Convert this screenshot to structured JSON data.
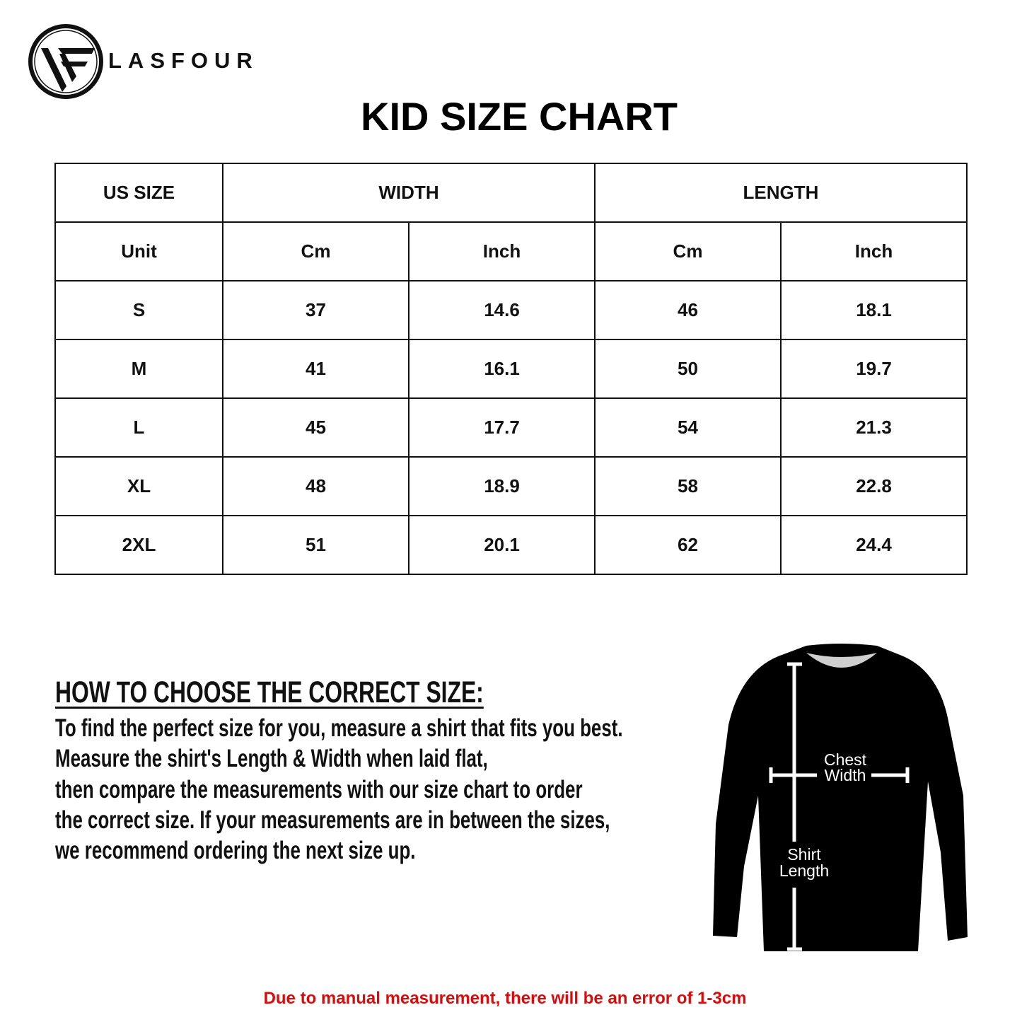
{
  "brand": {
    "name": "LASFOUR"
  },
  "title": "KID SIZE CHART",
  "table": {
    "header_row1": [
      "US SIZE",
      "WIDTH",
      "LENGTH"
    ],
    "header_row2": [
      "Unit",
      "Cm",
      "Inch",
      "Cm",
      "Inch"
    ],
    "rows": [
      [
        "S",
        "37",
        "14.6",
        "46",
        "18.1"
      ],
      [
        "M",
        "41",
        "16.1",
        "50",
        "19.7"
      ],
      [
        "L",
        "45",
        "17.7",
        "54",
        "21.3"
      ],
      [
        "XL",
        "48",
        "18.9",
        "58",
        "22.8"
      ],
      [
        "2XL",
        "51",
        "20.1",
        "62",
        "24.4"
      ]
    ]
  },
  "guide": {
    "heading": "HOW TO CHOOSE THE CORRECT SIZE:",
    "lines": [
      "To find the perfect size for you, measure a shirt that fits you best.",
      "Measure the shirt's Length & Width when laid flat,",
      "then compare the measurements with our size chart to order",
      "the correct size. If your measurements are in between the sizes,",
      "we recommend ordering the next size up."
    ]
  },
  "diagram": {
    "chest_label": [
      "Chest",
      "Width"
    ],
    "length_label": [
      "Shirt",
      "Length"
    ]
  },
  "note": "Due to manual measurement, there will be an error of 1-3cm",
  "colors": {
    "note": "#d80c0c",
    "text": "#111111"
  }
}
